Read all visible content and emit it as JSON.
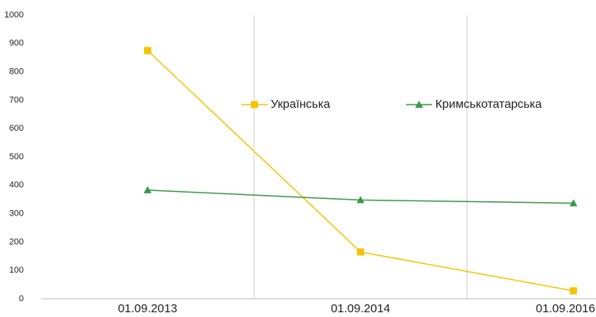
{
  "chart_data": {
    "type": "line",
    "categories": [
      "01.09.2013",
      "01.09.2014",
      "01.09.2016"
    ],
    "series": [
      {
        "name": "Українська",
        "color": "#f5c400",
        "marker": "square",
        "values": [
          875,
          165,
          28
        ]
      },
      {
        "name": "Кримськотатарська",
        "color": "#3a9a4a",
        "marker": "triangle",
        "values": [
          383,
          348,
          337
        ]
      }
    ],
    "ylim": [
      0,
      1000
    ],
    "yticks": [
      0,
      100,
      200,
      300,
      400,
      500,
      600,
      700,
      800,
      900,
      1000
    ],
    "grid": false,
    "legend": "top"
  }
}
